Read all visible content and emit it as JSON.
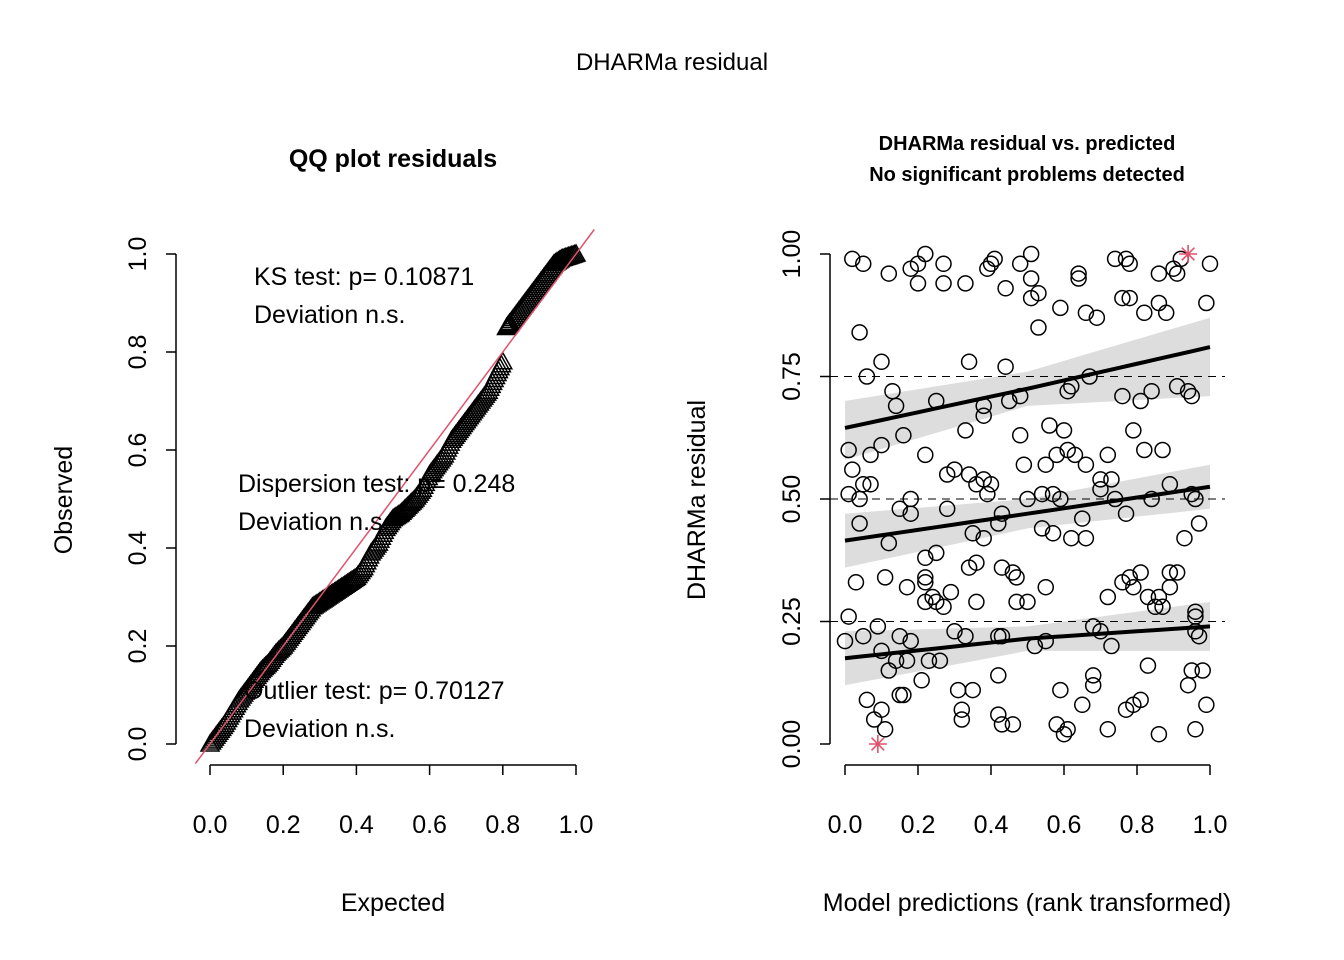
{
  "main_title": "DHARMa residual",
  "chart_data": [
    {
      "type": "scatter",
      "title": "QQ plot residuals",
      "xlabel": "Expected",
      "ylabel": "Observed",
      "xlim": [
        0,
        1
      ],
      "ylim": [
        0,
        1
      ],
      "x_ticks": [
        "0.0",
        "0.2",
        "0.4",
        "0.6",
        "0.8",
        "1.0"
      ],
      "y_ticks": [
        "0.0",
        "0.2",
        "0.4",
        "0.6",
        "0.8",
        "1.0"
      ],
      "marker": "triangle",
      "reference_line": {
        "type": "y=x",
        "color": "#DF536B"
      },
      "annotations": [
        {
          "line1": "KS test: p= 0.10871",
          "line2": "Deviation  n.s."
        },
        {
          "line1": "Dispersion test: p= 0.248",
          "line2": "Deviation  n.s."
        },
        {
          "line1": "Outlier test: p= 0.70127",
          "line2": "Deviation  n.s."
        }
      ],
      "points": [
        [
          0,
          0
        ],
        [
          0.02,
          0.02
        ],
        [
          0.04,
          0.04
        ],
        [
          0.06,
          0.065
        ],
        [
          0.08,
          0.09
        ],
        [
          0.1,
          0.11
        ],
        [
          0.12,
          0.13
        ],
        [
          0.14,
          0.15
        ],
        [
          0.16,
          0.165
        ],
        [
          0.18,
          0.185
        ],
        [
          0.2,
          0.2
        ],
        [
          0.22,
          0.22
        ],
        [
          0.24,
          0.24
        ],
        [
          0.26,
          0.26
        ],
        [
          0.28,
          0.28
        ],
        [
          0.3,
          0.29
        ],
        [
          0.32,
          0.3
        ],
        [
          0.34,
          0.31
        ],
        [
          0.36,
          0.32
        ],
        [
          0.38,
          0.33
        ],
        [
          0.4,
          0.34
        ],
        [
          0.42,
          0.36
        ],
        [
          0.44,
          0.39
        ],
        [
          0.46,
          0.41
        ],
        [
          0.48,
          0.44
        ],
        [
          0.5,
          0.46
        ],
        [
          0.52,
          0.47
        ],
        [
          0.54,
          0.485
        ],
        [
          0.56,
          0.5
        ],
        [
          0.58,
          0.52
        ],
        [
          0.6,
          0.55
        ],
        [
          0.62,
          0.57
        ],
        [
          0.64,
          0.59
        ],
        [
          0.66,
          0.62
        ],
        [
          0.68,
          0.64
        ],
        [
          0.7,
          0.66
        ],
        [
          0.72,
          0.68
        ],
        [
          0.74,
          0.7
        ],
        [
          0.76,
          0.72
        ],
        [
          0.78,
          0.75
        ],
        [
          0.8,
          0.78
        ],
        [
          0.81,
          0.85
        ],
        [
          0.82,
          0.86
        ],
        [
          0.84,
          0.88
        ],
        [
          0.86,
          0.9
        ],
        [
          0.88,
          0.92
        ],
        [
          0.9,
          0.94
        ],
        [
          0.92,
          0.96
        ],
        [
          0.94,
          0.98
        ],
        [
          0.96,
          0.99
        ],
        [
          0.98,
          0.995
        ],
        [
          1,
          1
        ]
      ]
    },
    {
      "type": "scatter",
      "title_line1": "DHARMa residual vs. predicted",
      "title_line2": "No significant problems detected",
      "xlabel": "Model predictions (rank transformed)",
      "ylabel": "DHARMa residual",
      "xlim": [
        0,
        1
      ],
      "ylim": [
        0,
        1
      ],
      "x_ticks": [
        "0.0",
        "0.2",
        "0.4",
        "0.6",
        "0.8",
        "1.0"
      ],
      "y_ticks": [
        "0.00",
        "0.25",
        "0.50",
        "0.75",
        "1.00"
      ],
      "reference_lines": [
        0.25,
        0.5,
        0.75
      ],
      "marker": "open-circle",
      "outlier_color": "#DF536B",
      "outliers": [
        [
          0.09,
          0.0
        ],
        [
          0.94,
          1.0
        ]
      ],
      "quantile_fits": [
        {
          "quantile": 0.25,
          "x": [
            0,
            0.5,
            1
          ],
          "y": [
            0.175,
            0.215,
            0.24
          ],
          "lower": [
            0.12,
            0.19,
            0.19
          ],
          "upper": [
            0.23,
            0.24,
            0.29
          ]
        },
        {
          "quantile": 0.5,
          "x": [
            0,
            0.5,
            1
          ],
          "y": [
            0.415,
            0.47,
            0.525
          ],
          "lower": [
            0.36,
            0.44,
            0.48
          ],
          "upper": [
            0.47,
            0.5,
            0.57
          ]
        },
        {
          "quantile": 0.75,
          "x": [
            0,
            0.5,
            1
          ],
          "y": [
            0.645,
            0.725,
            0.81
          ],
          "lower": [
            0.58,
            0.69,
            0.71
          ],
          "upper": [
            0.7,
            0.76,
            0.87
          ]
        }
      ],
      "fit_band_color": "#DDDDDD",
      "points": [
        [
          0.02,
          0.99
        ],
        [
          0.05,
          0.98
        ],
        [
          0.12,
          0.96
        ],
        [
          0.18,
          0.97
        ],
        [
          0.2,
          0.98
        ],
        [
          0.22,
          1.0
        ],
        [
          0.2,
          0.94
        ],
        [
          0.27,
          0.98
        ],
        [
          0.27,
          0.94
        ],
        [
          0.33,
          0.94
        ],
        [
          0.39,
          0.97
        ],
        [
          0.41,
          0.99
        ],
        [
          0.4,
          0.98
        ],
        [
          0.44,
          0.93
        ],
        [
          0.48,
          0.98
        ],
        [
          0.51,
          1.0
        ],
        [
          0.51,
          0.95
        ],
        [
          0.53,
          0.92
        ],
        [
          0.51,
          0.91
        ],
        [
          0.53,
          0.85
        ],
        [
          0.59,
          0.89
        ],
        [
          0.64,
          0.96
        ],
        [
          0.64,
          0.95
        ],
        [
          0.66,
          0.88
        ],
        [
          0.69,
          0.87
        ],
        [
          0.74,
          0.99
        ],
        [
          0.77,
          0.99
        ],
        [
          0.78,
          0.98
        ],
        [
          0.76,
          0.91
        ],
        [
          0.78,
          0.91
        ],
        [
          0.82,
          0.88
        ],
        [
          0.86,
          0.9
        ],
        [
          0.88,
          0.88
        ],
        [
          0.86,
          0.96
        ],
        [
          0.9,
          0.97
        ],
        [
          0.92,
          0.99
        ],
        [
          0.91,
          0.96
        ],
        [
          1.0,
          0.98
        ],
        [
          0.99,
          0.9
        ],
        [
          0.04,
          0.84
        ],
        [
          0.1,
          0.78
        ],
        [
          0.34,
          0.78
        ],
        [
          0.44,
          0.77
        ],
        [
          0.06,
          0.75
        ],
        [
          0.13,
          0.72
        ],
        [
          0.14,
          0.69
        ],
        [
          0.16,
          0.63
        ],
        [
          0.25,
          0.7
        ],
        [
          0.48,
          0.71
        ],
        [
          0.45,
          0.7
        ],
        [
          0.38,
          0.69
        ],
        [
          0.38,
          0.67
        ],
        [
          0.61,
          0.72
        ],
        [
          0.62,
          0.73
        ],
        [
          0.67,
          0.75
        ],
        [
          0.76,
          0.71
        ],
        [
          0.81,
          0.7
        ],
        [
          0.84,
          0.72
        ],
        [
          0.91,
          0.73
        ],
        [
          0.94,
          0.72
        ],
        [
          0.95,
          0.71
        ],
        [
          0.48,
          0.63
        ],
        [
          0.56,
          0.65
        ],
        [
          0.6,
          0.64
        ],
        [
          0.79,
          0.64
        ],
        [
          0.33,
          0.64
        ],
        [
          0.01,
          0.6
        ],
        [
          0.1,
          0.61
        ],
        [
          0.07,
          0.59
        ],
        [
          0.02,
          0.56
        ],
        [
          0.05,
          0.53
        ],
        [
          0.04,
          0.5
        ],
        [
          0.01,
          0.51
        ],
        [
          0.07,
          0.53
        ],
        [
          0.04,
          0.45
        ],
        [
          0.22,
          0.59
        ],
        [
          0.28,
          0.55
        ],
        [
          0.3,
          0.56
        ],
        [
          0.34,
          0.55
        ],
        [
          0.38,
          0.54
        ],
        [
          0.36,
          0.53
        ],
        [
          0.4,
          0.53
        ],
        [
          0.39,
          0.51
        ],
        [
          0.18,
          0.5
        ],
        [
          0.15,
          0.48
        ],
        [
          0.18,
          0.47
        ],
        [
          0.28,
          0.48
        ],
        [
          0.49,
          0.57
        ],
        [
          0.55,
          0.57
        ],
        [
          0.58,
          0.59
        ],
        [
          0.61,
          0.6
        ],
        [
          0.63,
          0.59
        ],
        [
          0.66,
          0.57
        ],
        [
          0.7,
          0.54
        ],
        [
          0.73,
          0.54
        ],
        [
          0.72,
          0.59
        ],
        [
          0.82,
          0.6
        ],
        [
          0.87,
          0.6
        ],
        [
          0.89,
          0.53
        ],
        [
          0.5,
          0.5
        ],
        [
          0.54,
          0.51
        ],
        [
          0.57,
          0.51
        ],
        [
          0.59,
          0.5
        ],
        [
          0.7,
          0.52
        ],
        [
          0.74,
          0.5
        ],
        [
          0.84,
          0.5
        ],
        [
          0.95,
          0.51
        ],
        [
          0.96,
          0.5
        ],
        [
          0.97,
          0.45
        ],
        [
          0.93,
          0.42
        ],
        [
          0.77,
          0.47
        ],
        [
          0.65,
          0.46
        ],
        [
          0.57,
          0.43
        ],
        [
          0.54,
          0.44
        ],
        [
          0.62,
          0.42
        ],
        [
          0.66,
          0.42
        ],
        [
          0.43,
          0.47
        ],
        [
          0.42,
          0.45
        ],
        [
          0.35,
          0.43
        ],
        [
          0.38,
          0.42
        ],
        [
          0.12,
          0.41
        ],
        [
          0.25,
          0.39
        ],
        [
          0.22,
          0.38
        ],
        [
          0.36,
          0.37
        ],
        [
          0.34,
          0.36
        ],
        [
          0.43,
          0.36
        ],
        [
          0.46,
          0.35
        ],
        [
          0.47,
          0.34
        ],
        [
          0.55,
          0.32
        ],
        [
          0.22,
          0.34
        ],
        [
          0.22,
          0.33
        ],
        [
          0.29,
          0.31
        ],
        [
          0.24,
          0.3
        ],
        [
          0.25,
          0.29
        ],
        [
          0.27,
          0.28
        ],
        [
          0.22,
          0.29
        ],
        [
          0.36,
          0.29
        ],
        [
          0.47,
          0.29
        ],
        [
          0.5,
          0.29
        ],
        [
          0.03,
          0.33
        ],
        [
          0.11,
          0.34
        ],
        [
          0.17,
          0.32
        ],
        [
          0.72,
          0.3
        ],
        [
          0.76,
          0.33
        ],
        [
          0.78,
          0.34
        ],
        [
          0.79,
          0.32
        ],
        [
          0.81,
          0.35
        ],
        [
          0.83,
          0.3
        ],
        [
          0.85,
          0.28
        ],
        [
          0.86,
          0.3
        ],
        [
          0.87,
          0.28
        ],
        [
          0.89,
          0.35
        ],
        [
          0.91,
          0.35
        ],
        [
          0.89,
          0.32
        ],
        [
          0.96,
          0.27
        ],
        [
          0.01,
          0.26
        ],
        [
          0.0,
          0.21
        ],
        [
          0.05,
          0.22
        ],
        [
          0.09,
          0.24
        ],
        [
          0.15,
          0.22
        ],
        [
          0.1,
          0.19
        ],
        [
          0.18,
          0.21
        ],
        [
          0.17,
          0.17
        ],
        [
          0.14,
          0.17
        ],
        [
          0.3,
          0.23
        ],
        [
          0.33,
          0.22
        ],
        [
          0.42,
          0.22
        ],
        [
          0.43,
          0.22
        ],
        [
          0.52,
          0.2
        ],
        [
          0.55,
          0.21
        ],
        [
          0.68,
          0.24
        ],
        [
          0.7,
          0.23
        ],
        [
          0.73,
          0.2
        ],
        [
          0.96,
          0.23
        ],
        [
          0.97,
          0.22
        ],
        [
          0.96,
          0.26
        ],
        [
          0.12,
          0.15
        ],
        [
          0.21,
          0.13
        ],
        [
          0.26,
          0.17
        ],
        [
          0.23,
          0.17
        ],
        [
          0.31,
          0.11
        ],
        [
          0.35,
          0.11
        ],
        [
          0.42,
          0.14
        ],
        [
          0.16,
          0.1
        ],
        [
          0.15,
          0.1
        ],
        [
          0.06,
          0.09
        ],
        [
          0.1,
          0.07
        ],
        [
          0.08,
          0.05
        ],
        [
          0.11,
          0.03
        ],
        [
          0.32,
          0.07
        ],
        [
          0.32,
          0.05
        ],
        [
          0.42,
          0.06
        ],
        [
          0.43,
          0.04
        ],
        [
          0.46,
          0.04
        ],
        [
          0.59,
          0.11
        ],
        [
          0.58,
          0.04
        ],
        [
          0.61,
          0.03
        ],
        [
          0.6,
          0.02
        ],
        [
          0.65,
          0.08
        ],
        [
          0.68,
          0.12
        ],
        [
          0.68,
          0.14
        ],
        [
          0.72,
          0.03
        ],
        [
          0.77,
          0.07
        ],
        [
          0.79,
          0.08
        ],
        [
          0.81,
          0.09
        ],
        [
          0.83,
          0.16
        ],
        [
          0.86,
          0.02
        ],
        [
          0.96,
          0.03
        ],
        [
          0.99,
          0.08
        ],
        [
          0.98,
          0.15
        ],
        [
          0.94,
          0.12
        ],
        [
          0.95,
          0.15
        ]
      ]
    }
  ]
}
